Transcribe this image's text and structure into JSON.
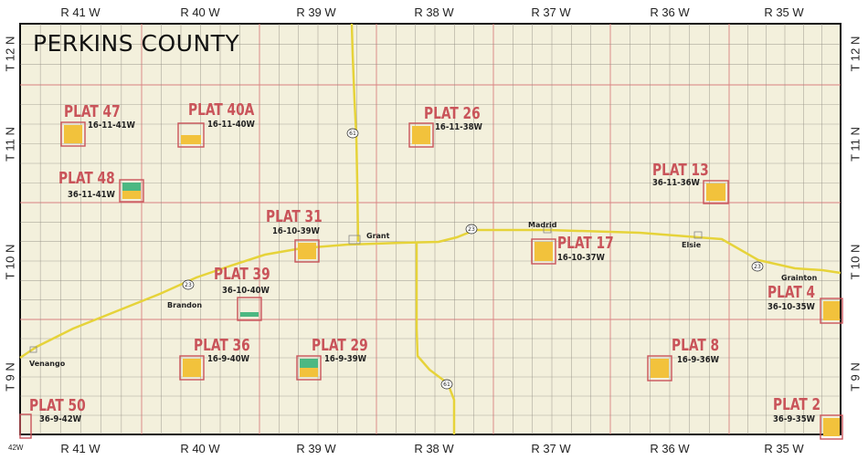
{
  "title": "PERKINS COUNTY",
  "colors": {
    "background": "#f3f0dc",
    "road": "#8e8a80",
    "highway": "#e6d33a",
    "section_line": "#d98080",
    "plat_border": "#c9545a",
    "plat_fill": "#f2c23c",
    "plat_green": "#4cb882"
  },
  "ranges_top": [
    "R 41 W",
    "R 40 W",
    "R 39 W",
    "R 38 W",
    "R 37 W",
    "R 36 W",
    "R 35 W"
  ],
  "ranges_bottom": [
    "R 41 W",
    "R 40 W",
    "R 39 W",
    "R 38 W",
    "R 37 W",
    "R 36 W",
    "R 35 W"
  ],
  "townships_left": [
    "T 12 N",
    "T 11 N",
    "T 10 N",
    "T 9 N"
  ],
  "townships_right": [
    "T 12 N",
    "T 11 N",
    "T 10 N",
    "T 9 N"
  ],
  "corner_label": "42W",
  "plats": [
    {
      "title": "PLAT 47",
      "code": "16-11-41W",
      "fill": "yellow"
    },
    {
      "title": "PLAT 40A",
      "code": "16-11-40W",
      "fill": "half-yellow"
    },
    {
      "title": "PLAT 26",
      "code": "16-11-38W",
      "fill": "yellow"
    },
    {
      "title": "PLAT 48",
      "code": "36-11-41W",
      "fill": "green-yellow"
    },
    {
      "title": "PLAT 13",
      "code": "36-11-36W",
      "fill": "yellow"
    },
    {
      "title": "PLAT 31",
      "code": "16-10-39W",
      "fill": "yellow"
    },
    {
      "title": "PLAT 17",
      "code": "16-10-37W",
      "fill": "yellow"
    },
    {
      "title": "PLAT 39",
      "code": "36-10-40W",
      "fill": "green-strip"
    },
    {
      "title": "PLAT 4",
      "code": "36-10-35W",
      "fill": "yellow"
    },
    {
      "title": "PLAT 36",
      "code": "16-9-40W",
      "fill": "yellow"
    },
    {
      "title": "PLAT 29",
      "code": "16-9-39W",
      "fill": "green-yellow"
    },
    {
      "title": "PLAT 8",
      "code": "16-9-36W",
      "fill": "yellow"
    },
    {
      "title": "PLAT 50",
      "code": "36-9-42W",
      "fill": "none"
    },
    {
      "title": "PLAT 2",
      "code": "36-9-35W",
      "fill": "yellow"
    }
  ],
  "towns": [
    "Grant",
    "Madrid",
    "Elsie",
    "Grainton",
    "Brandon",
    "Venango"
  ],
  "highway_shields": [
    "61",
    "23",
    "23",
    "23",
    "61"
  ]
}
